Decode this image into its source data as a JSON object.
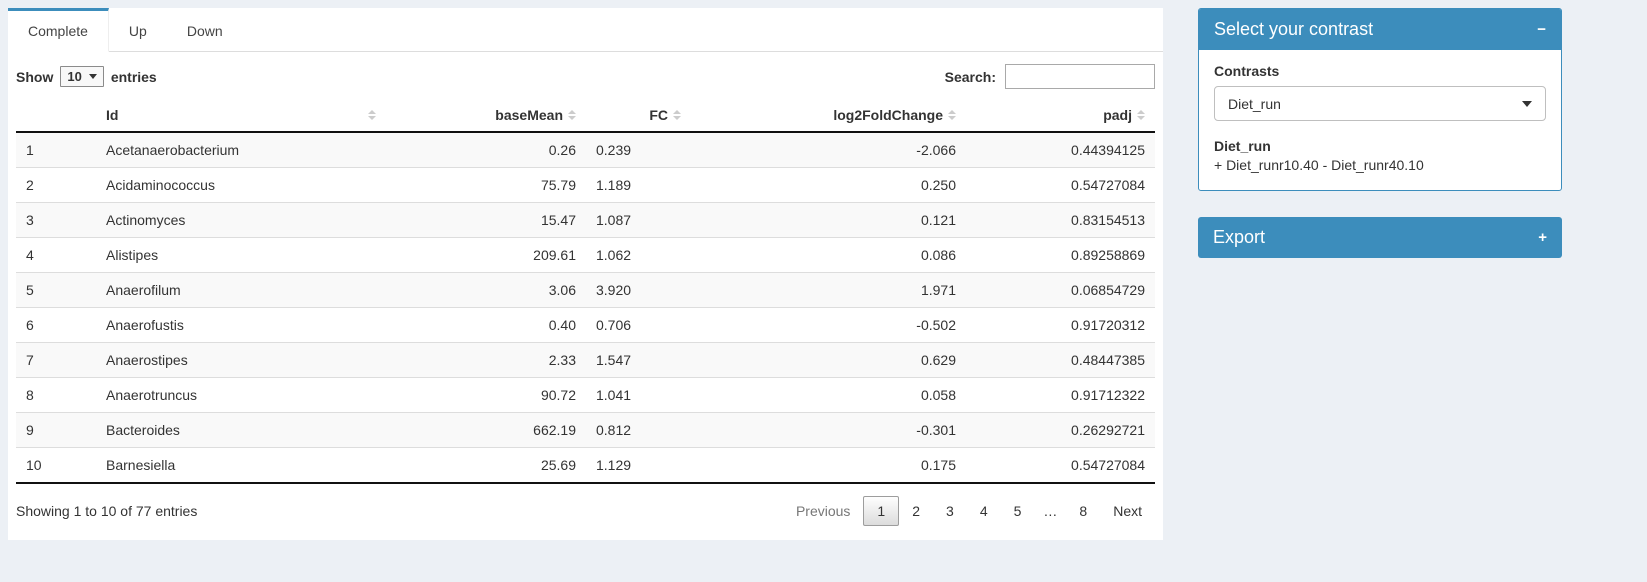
{
  "tabs": [
    {
      "label": "Complete"
    },
    {
      "label": "Up"
    },
    {
      "label": "Down"
    }
  ],
  "controls": {
    "show_label": "Show",
    "page_length": "10",
    "entries_label": "entries",
    "search_label": "Search:",
    "search_value": ""
  },
  "table": {
    "columns": [
      "",
      "Id",
      "baseMean",
      "FC",
      "log2FoldChange",
      "padj"
    ],
    "rows": [
      {
        "num": "1",
        "id": "Acetanaerobacterium",
        "baseMean": "0.26",
        "fc": "0.239",
        "log2fc": "-2.066",
        "padj": "0.44394125"
      },
      {
        "num": "2",
        "id": "Acidaminococcus",
        "baseMean": "75.79",
        "fc": "1.189",
        "log2fc": "0.250",
        "padj": "0.54727084"
      },
      {
        "num": "3",
        "id": "Actinomyces",
        "baseMean": "15.47",
        "fc": "1.087",
        "log2fc": "0.121",
        "padj": "0.83154513"
      },
      {
        "num": "4",
        "id": "Alistipes",
        "baseMean": "209.61",
        "fc": "1.062",
        "log2fc": "0.086",
        "padj": "0.89258869"
      },
      {
        "num": "5",
        "id": "Anaerofilum",
        "baseMean": "3.06",
        "fc": "3.920",
        "log2fc": "1.971",
        "padj": "0.06854729"
      },
      {
        "num": "6",
        "id": "Anaerofustis",
        "baseMean": "0.40",
        "fc": "0.706",
        "log2fc": "-0.502",
        "padj": "0.91720312"
      },
      {
        "num": "7",
        "id": "Anaerostipes",
        "baseMean": "2.33",
        "fc": "1.547",
        "log2fc": "0.629",
        "padj": "0.48447385"
      },
      {
        "num": "8",
        "id": "Anaerotruncus",
        "baseMean": "90.72",
        "fc": "1.041",
        "log2fc": "0.058",
        "padj": "0.91712322"
      },
      {
        "num": "9",
        "id": "Bacteroides",
        "baseMean": "662.19",
        "fc": "0.812",
        "log2fc": "-0.301",
        "padj": "0.26292721"
      },
      {
        "num": "10",
        "id": "Barnesiella",
        "baseMean": "25.69",
        "fc": "1.129",
        "log2fc": "0.175",
        "padj": "0.54727084"
      }
    ],
    "info": "Showing 1 to 10 of 77 entries"
  },
  "pagination": {
    "previous": "Previous",
    "pages": [
      "1",
      "2",
      "3",
      "4",
      "5",
      "…",
      "8"
    ],
    "current": "1",
    "next": "Next"
  },
  "contrast_panel": {
    "title": "Select your contrast",
    "collapse_icon": "−",
    "contrasts_label": "Contrasts",
    "selected_contrast": "Diet_run",
    "description_title": "Diet_run",
    "description_formula": "+ Diet_runr10.40 - Diet_runr40.10"
  },
  "export_panel": {
    "title": "Export",
    "expand_icon": "+"
  },
  "colors": {
    "accent": "#3c8dbc",
    "page_background": "#ecf0f5",
    "stripe": "#f9f9f9"
  }
}
